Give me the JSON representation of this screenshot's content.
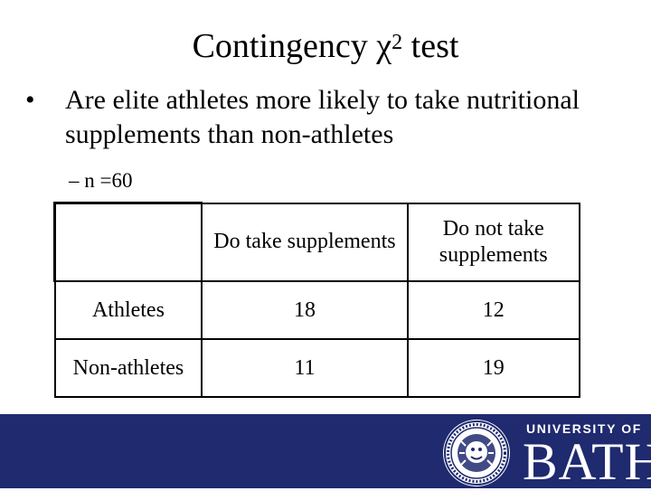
{
  "slide": {
    "title_prefix": "Contingency χ",
    "title_superscript": "2",
    "title_suffix": " test",
    "bullet_marker": "•",
    "bullet_text": "Are elite athletes more likely to take nutritional supplements than non-athletes",
    "sub_bullet": "– n =60"
  },
  "table": {
    "corner": "",
    "headers": [
      "Do take supplements",
      "Do not take supplements"
    ],
    "rows": [
      {
        "label": "Athletes",
        "values": [
          "18",
          "12"
        ]
      },
      {
        "label": "Non-athletes",
        "values": [
          "11",
          "19"
        ]
      }
    ]
  },
  "footer": {
    "background_color": "#1f2a6f",
    "crest_icon": "university-crest-icon",
    "logo_line1": "UNIVERSITY OF",
    "logo_line2": "BATH"
  }
}
